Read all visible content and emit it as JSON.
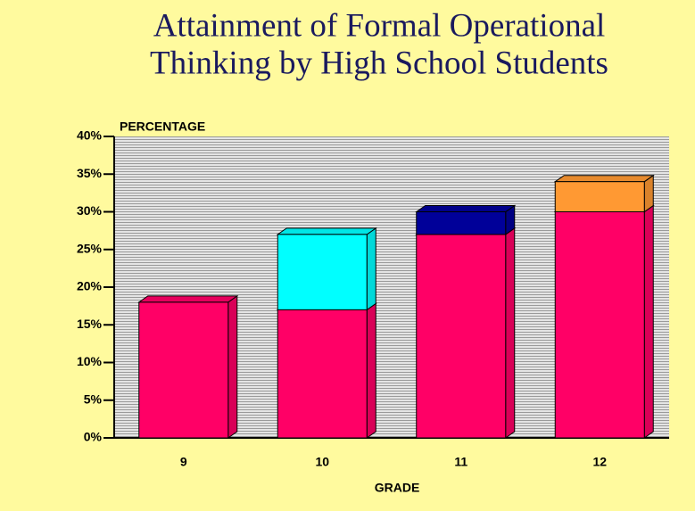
{
  "chart_data": {
    "type": "stacked_bar",
    "title": [
      "Attainment of Formal Operational",
      "Thinking by High School Students"
    ],
    "y_label": "PERCENTAGE",
    "x_label": "GRADE",
    "categories": [
      "9",
      "10",
      "11",
      "12"
    ],
    "series": [
      {
        "color": "#ff0066",
        "values": [
          18,
          17,
          27,
          30
        ]
      },
      {
        "colors": [
          null,
          "#00ffff",
          "#000099",
          "#ff9933"
        ],
        "values": [
          null,
          10,
          3,
          4
        ]
      }
    ],
    "ylim": [
      0,
      40
    ],
    "yticks": [
      {
        "value": 0,
        "label": "0%"
      },
      {
        "value": 5,
        "label": "5%"
      },
      {
        "value": 10,
        "label": "10%"
      },
      {
        "value": 15,
        "label": "15%"
      },
      {
        "value": 20,
        "label": "20%"
      },
      {
        "value": 25,
        "label": "25%"
      },
      {
        "value": 30,
        "label": "30%"
      },
      {
        "value": 35,
        "label": "35%"
      },
      {
        "value": 40,
        "label": "40%"
      }
    ],
    "grid": true
  }
}
